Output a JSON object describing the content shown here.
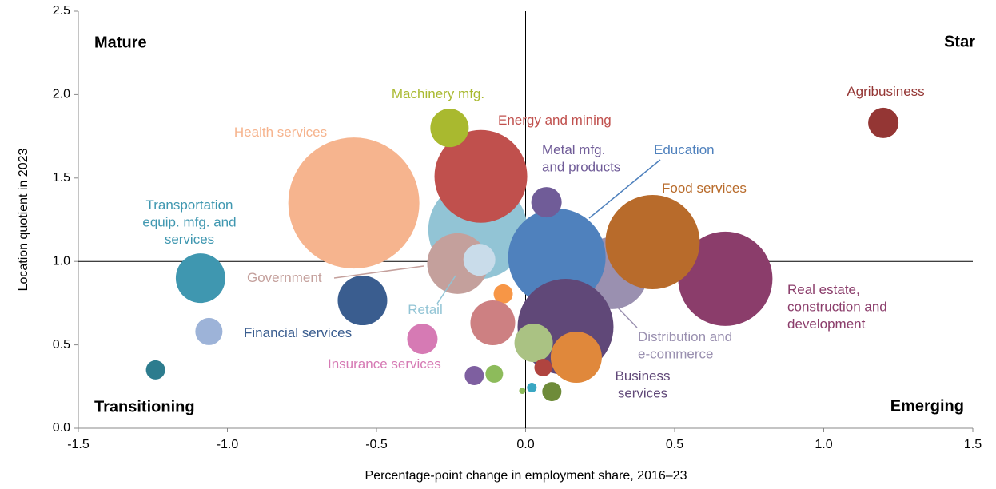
{
  "chart_data": {
    "type": "bubble",
    "x_label": "Percentage-point change in employment share, 2016–23",
    "y_label": "Location quotient in 2023",
    "xlim": [
      -1.5,
      1.5
    ],
    "ylim": [
      0,
      2.5
    ],
    "xticks": [
      {
        "value": -1.5,
        "label": "-1.5"
      },
      {
        "value": -1.0,
        "label": "-1.0"
      },
      {
        "value": -0.5,
        "label": "-0.5"
      },
      {
        "value": 0,
        "label": "0.0"
      },
      {
        "value": 0.5,
        "label": "0.5"
      },
      {
        "value": 1.0,
        "label": "1.0"
      },
      {
        "value": 1.5,
        "label": "1.5"
      }
    ],
    "yticks": [
      {
        "value": 0,
        "label": "0.0"
      },
      {
        "value": 0.5,
        "label": "0.5"
      },
      {
        "value": 1.0,
        "label": "1.0"
      },
      {
        "value": 1.5,
        "label": "1.5"
      },
      {
        "value": 2.0,
        "label": "2.0"
      },
      {
        "value": 2.5,
        "label": "2.5"
      }
    ],
    "quadrant_lines": {
      "x": 0,
      "y": 1
    },
    "quadrant_labels": {
      "top_left": "Mature",
      "top_right": "Star",
      "bottom_left": "Transitioning",
      "bottom_right": "Emerging"
    },
    "series": [
      {
        "name": "Health services",
        "color": "#f6b48e",
        "x": -0.576,
        "y": 1.35,
        "size": 82
      },
      {
        "name": "Retail",
        "color": "#92c4d5",
        "x": -0.16,
        "y": 1.19,
        "size": 62
      },
      {
        "name": "Distribution and e-commerce",
        "color": "#9a90b0",
        "x": 0.29,
        "y": 0.93,
        "size": 45
      },
      {
        "name": "Real estate, construction and development",
        "color": "#8b3d6b",
        "x": 0.67,
        "y": 0.896,
        "size": 59
      },
      {
        "name": "Food services",
        "color": "#b86b2b",
        "x": 0.426,
        "y": 1.116,
        "size": 59
      },
      {
        "name": "Energy and mining",
        "color": "#c0504d",
        "x": -0.15,
        "y": 1.51,
        "size": 58
      },
      {
        "name": "Education",
        "color": "#4f81bd",
        "x": 0.105,
        "y": 1.025,
        "size": 61
      },
      {
        "name": "Government",
        "color": "#c4a09c",
        "x": -0.228,
        "y": 0.987,
        "size": 38
      },
      {
        "name": null,
        "color": "#c9dcea",
        "x": -0.155,
        "y": 1.01,
        "size": 20
      },
      {
        "name": "Metal mfg. and products",
        "color": "#705c98",
        "x": 0.07,
        "y": 1.355,
        "size": 19
      },
      {
        "name": "Business services",
        "color": "#604878",
        "x": 0.134,
        "y": 0.608,
        "size": 60
      },
      {
        "name": "Machinery mfg.",
        "color": "#a9b92f",
        "x": -0.255,
        "y": 1.8,
        "size": 24
      },
      {
        "name": "Agribusiness",
        "color": "#943634",
        "x": 1.2,
        "y": 1.83,
        "size": 19
      },
      {
        "name": "Transportation equip. mfg. and services",
        "color": "#3f97b0",
        "x": -1.09,
        "y": 0.9,
        "size": 31
      },
      {
        "name": "Financial services",
        "color": "#3a5d8f",
        "x": -0.547,
        "y": 0.766,
        "size": 31
      },
      {
        "name": "Insurance services",
        "color": "#d67ab4",
        "x": -0.346,
        "y": 0.536,
        "size": 19
      },
      {
        "name": null,
        "color": "#f79646",
        "x": -0.075,
        "y": 0.805,
        "size": 12
      },
      {
        "name": null,
        "color": "#cd8082",
        "x": -0.11,
        "y": 0.632,
        "size": 28
      },
      {
        "name": null,
        "color": "#aac283",
        "x": 0.027,
        "y": 0.512,
        "size": 24
      },
      {
        "name": null,
        "color": "#e0883b",
        "x": 0.17,
        "y": 0.426,
        "size": 32
      },
      {
        "name": null,
        "color": "#9db3d8",
        "x": -1.062,
        "y": 0.58,
        "size": 17
      },
      {
        "name": null,
        "color": "#2d7c8e",
        "x": -1.241,
        "y": 0.35,
        "size": 12
      },
      {
        "name": null,
        "color": "#7e5fa0",
        "x": -0.172,
        "y": 0.316,
        "size": 12
      },
      {
        "name": null,
        "color": "#8dbb5b",
        "x": -0.105,
        "y": 0.326,
        "size": 11
      },
      {
        "name": null,
        "color": "#b0443f",
        "x": 0.059,
        "y": 0.364,
        "size": 11
      },
      {
        "name": null,
        "color": "#3aa7c3",
        "x": 0.021,
        "y": 0.244,
        "size": 6
      },
      {
        "name": null,
        "color": "#8dbb5b",
        "x": -0.011,
        "y": 0.225,
        "size": 4
      },
      {
        "name": null,
        "color": "#6e8b39",
        "x": 0.088,
        "y": 0.22,
        "size": 12
      }
    ]
  }
}
